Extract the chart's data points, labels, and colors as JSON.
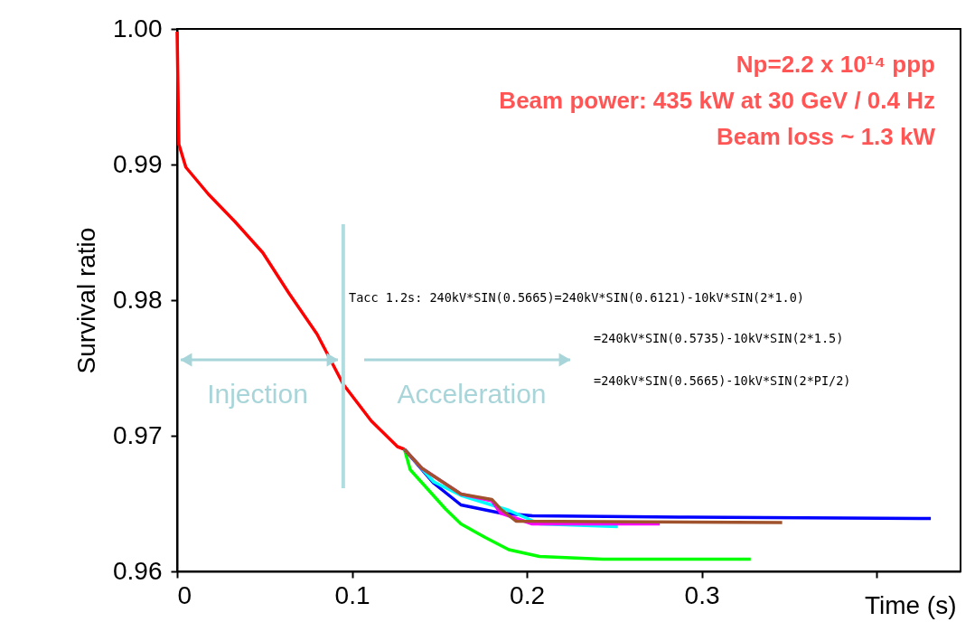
{
  "chart_data": {
    "type": "line",
    "xlabel": "Time (s)",
    "ylabel": "Survival ratio",
    "xlim": [
      0,
      0.448
    ],
    "ylim": [
      0.96,
      1.0
    ],
    "xticks": [
      0,
      0.1,
      0.2,
      0.3,
      {
        "value": 0.4,
        "label": null
      }
    ],
    "yticks": [
      0.96,
      0.97,
      0.98,
      0.99,
      {
        "value": 1.0,
        "label": "1.00"
      }
    ],
    "grid": false,
    "legend": false,
    "marker": "none",
    "line_style": "solid",
    "series": [
      {
        "color": "#ff0000",
        "x": [
          0,
          0.001,
          0.005,
          0.018,
          0.033,
          0.049,
          0.064,
          0.08,
          0.095,
          0.111,
          0.126,
          0.13
        ],
        "values": [
          0.9998,
          0.9915,
          0.9898,
          0.9878,
          0.9858,
          0.9835,
          0.9805,
          0.9775,
          0.9738,
          0.9711,
          0.9692,
          0.969
        ]
      },
      {
        "color": "#00ff00",
        "x": [
          0.13,
          0.1333,
          0.1535,
          0.1623,
          0.1762,
          0.1897,
          0.2072,
          0.2434,
          0.328
        ],
        "values": [
          0.969,
          0.9675,
          0.9646,
          0.9635,
          0.9625,
          0.9616,
          0.9611,
          0.9609,
          0.9609
        ]
      },
      {
        "color": "#0000ff",
        "x": [
          0.13,
          0.1468,
          0.1623,
          0.185,
          0.2031,
          0.287,
          0.431
        ],
        "values": [
          0.969,
          0.9665,
          0.9649,
          0.9643,
          0.9641,
          0.964,
          0.9639
        ]
      },
      {
        "color": "#00ffff",
        "x": [
          0.13,
          0.1468,
          0.1623,
          0.1897,
          0.2072,
          0.252
        ],
        "values": [
          0.969,
          0.9666,
          0.9656,
          0.9645,
          0.9635,
          0.9633
        ]
      },
      {
        "color": "#ff00ff",
        "x": [
          0.13,
          0.14,
          0.1623,
          0.18,
          0.185,
          0.2031,
          0.276
        ],
        "values": [
          0.969,
          0.9676,
          0.9657,
          0.9652,
          0.9643,
          0.9635,
          0.9635
        ]
      },
      {
        "color": "#a0522d",
        "x": [
          0.13,
          0.14,
          0.1623,
          0.18,
          0.185,
          0.1938,
          0.346
        ],
        "values": [
          0.969,
          0.9676,
          0.9657,
          0.9653,
          0.9646,
          0.9637,
          0.9636
        ]
      }
    ],
    "ref_lines": [
      {
        "axis": "x",
        "value": 0.095,
        "color": "#b0dde0"
      }
    ],
    "annotations": [
      "Np=2.2 x 10¹⁴ ppp",
      "Beam power: 435 kW at 30 GeV / 0.4 Hz",
      "Beam loss ~ 1.3 kW",
      "Tacc 1.2s: 240kV*SIN(0.5665)=240kV*SIN(0.6121)-10kV*SIN(2*1.0)",
      "=240kV*SIN(0.5735)-10kV*SIN(2*1.5)",
      "=240kV*SIN(0.5665)-10kV*SIN(2*PI/2)",
      "Injection",
      "Acceleration"
    ]
  }
}
